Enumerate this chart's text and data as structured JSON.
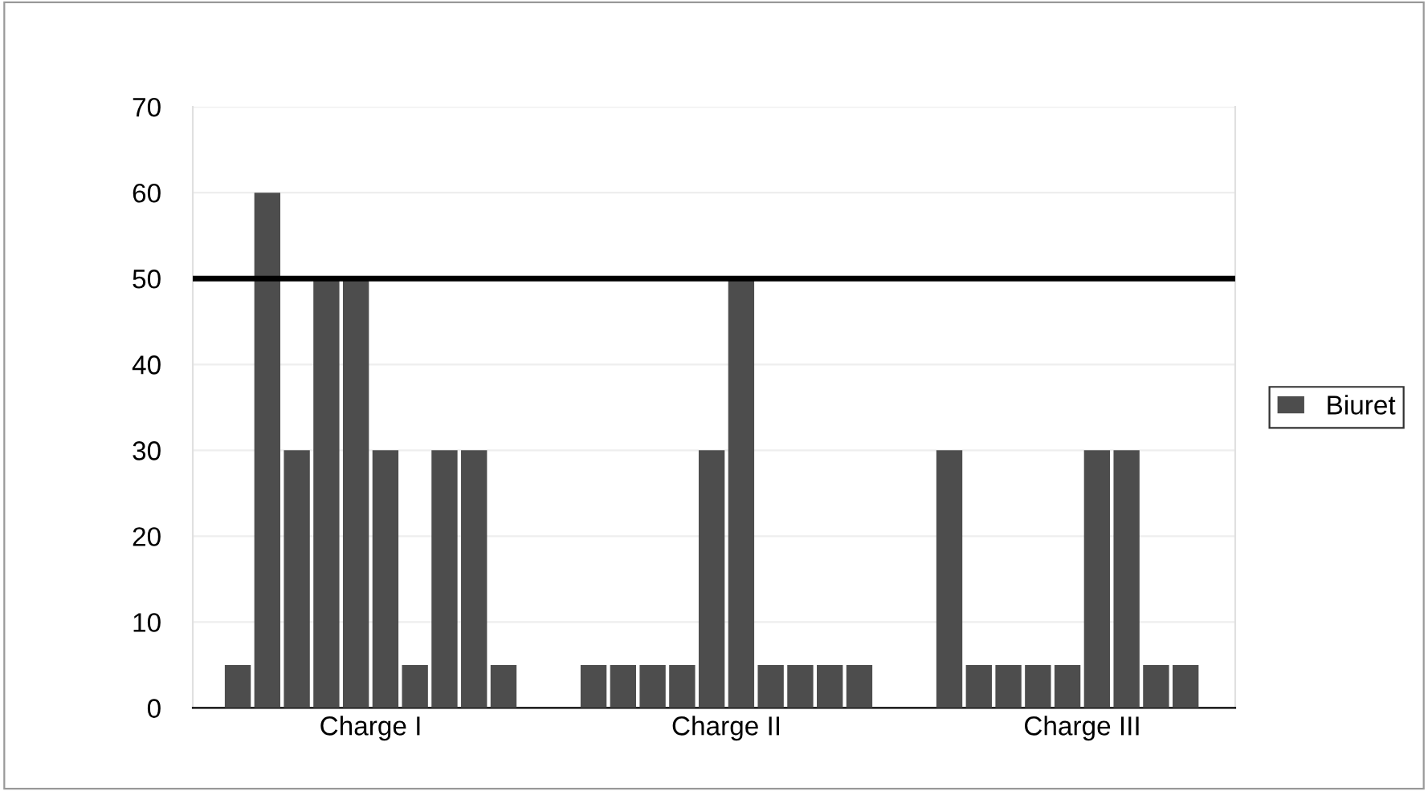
{
  "chart_data": {
    "type": "bar",
    "categories": [
      "Charge I",
      "Charge II",
      "Charge III"
    ],
    "series": [
      {
        "name": "Biuret",
        "color": "#4d4d4d",
        "values": [
          5,
          5,
          30
        ]
      },
      {
        "color": "#4d4d4d",
        "values": [
          60,
          5,
          5
        ]
      },
      {
        "color": "#4d4d4d",
        "values": [
          30,
          5,
          5
        ]
      },
      {
        "color": "#4d4d4d",
        "values": [
          50,
          5,
          5
        ]
      },
      {
        "color": "#4d4d4d",
        "values": [
          50,
          30,
          5
        ]
      },
      {
        "color": "#4d4d4d",
        "values": [
          30,
          50,
          30
        ]
      },
      {
        "color": "#4d4d4d",
        "values": [
          5,
          5,
          30
        ]
      },
      {
        "color": "#4d4d4d",
        "values": [
          30,
          5,
          5
        ]
      },
      {
        "color": "#4d4d4d",
        "values": [
          30,
          5,
          5
        ]
      },
      {
        "color": "#4d4d4d",
        "values": [
          5,
          5,
          null
        ]
      }
    ],
    "ylim": [
      0,
      70
    ],
    "yticks": [
      0,
      10,
      20,
      30,
      40,
      50,
      60,
      70
    ],
    "grid": "y",
    "legend": "right",
    "ref_lines": [
      {
        "axis": "y",
        "value": 50,
        "color": "#000000"
      }
    ]
  }
}
